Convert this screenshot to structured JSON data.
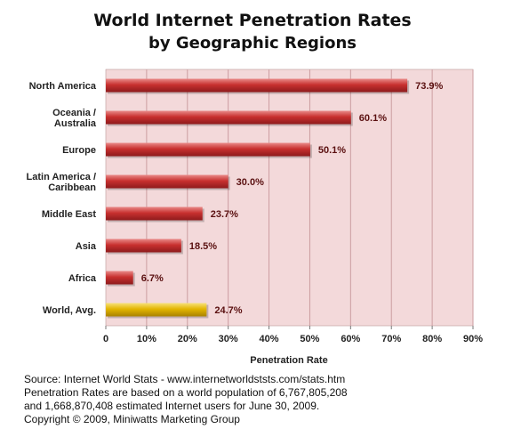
{
  "title_line1": "World Internet Penetration Rates",
  "title_line2": "by Geographic Regions",
  "chart_data": {
    "type": "bar",
    "orientation": "horizontal",
    "categories": [
      [
        "North America"
      ],
      [
        "Oceania  /",
        "Australia"
      ],
      [
        "Europe"
      ],
      [
        "Latin America /",
        "Caribbean"
      ],
      [
        "Middle East"
      ],
      [
        "Asia"
      ],
      [
        "Africa"
      ],
      [
        "World, Avg."
      ]
    ],
    "values": [
      73.9,
      60.1,
      50.1,
      30.0,
      23.7,
      18.5,
      6.7,
      24.7
    ],
    "value_labels": [
      "73.9%",
      "60.1%",
      "50.1%",
      "30.0%",
      "23.7%",
      "18.5%",
      "6.7%",
      "24.7%"
    ],
    "xlim": [
      0,
      90
    ],
    "xticks": [
      0,
      10,
      20,
      30,
      40,
      50,
      60,
      70,
      80,
      90
    ],
    "xtick_labels": [
      "0",
      "10%",
      "20%",
      "30%",
      "40%",
      "50%",
      "60%",
      "70%",
      "80%",
      "90%"
    ],
    "xlabel": "Penetration Rate",
    "grid": true,
    "colors": {
      "bar": "#c0282d",
      "highlight_bar": "#e3b500",
      "plot_background": "#f3d9da",
      "gridline": "#cc9da0"
    },
    "highlight_index": 7
  },
  "source": [
    "Source: Internet World Stats - www.internetworldststs.com/stats.htm",
    "Penetration Rates are based on a world population of 6,767,805,208",
    "and 1,668,870,408 estimated Internet users for June 30, 2009.",
    "Copyright © 2009, Miniwatts Marketing Group"
  ]
}
